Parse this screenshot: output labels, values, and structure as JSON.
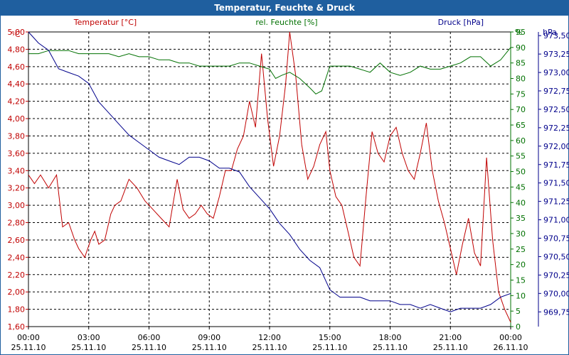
{
  "window": {
    "title": "Temperatur, Feuchte & Druck"
  },
  "colors": {
    "temperature": "#c00000",
    "humidity": "#007000",
    "pressure": "#00008b",
    "grid": "#000000",
    "title_bar": "#1f5f9f"
  },
  "chart_data": {
    "type": "line",
    "title": "Temperatur, Feuchte & Druck",
    "grid": true,
    "x_ticks": [
      {
        "time": "00:00",
        "date": "25.11.10"
      },
      {
        "time": "03:00",
        "date": "25.11.10"
      },
      {
        "time": "06:00",
        "date": "25.11.10"
      },
      {
        "time": "09:00",
        "date": "25.11.10"
      },
      {
        "time": "12:00",
        "date": "25.11.10"
      },
      {
        "time": "15:00",
        "date": "25.11.10"
      },
      {
        "time": "18:00",
        "date": "25.11.10"
      },
      {
        "time": "21:00",
        "date": "25.11.10"
      },
      {
        "time": "00:00",
        "date": "26.11.10"
      }
    ],
    "x_range_hours": [
      0,
      24
    ],
    "axes": {
      "temperature": {
        "label": "Temperatur [°C]",
        "unit": "°C",
        "ylim": [
          1.6,
          5.0
        ],
        "ticks": [
          "5,00",
          "4,80",
          "4,60",
          "4,40",
          "4,20",
          "4,00",
          "3,80",
          "3,60",
          "3,40",
          "3,20",
          "3,00",
          "2,80",
          "2,60",
          "2,40",
          "2,20",
          "2,00",
          "1,80",
          "1,60"
        ]
      },
      "humidity": {
        "label": "rel. Feuchte [%]",
        "unit": "%",
        "ylim": [
          0,
          95
        ],
        "ticks": [
          "95",
          "90",
          "85",
          "80",
          "75",
          "70",
          "65",
          "60",
          "55",
          "50",
          "45",
          "40",
          "35",
          "30",
          "25",
          "20",
          "15",
          "10",
          "5",
          "0"
        ]
      },
      "pressure": {
        "label": "Druck [hPa]",
        "unit": "hPa",
        "ylim": [
          969.75,
          973.5
        ],
        "ticks": [
          "973,50",
          "973,25",
          "973,00",
          "972,75",
          "972,50",
          "972,25",
          "972,00",
          "971,75",
          "971,50",
          "971,25",
          "971,00",
          "970,75",
          "970,50",
          "970,25",
          "970,00",
          "969,75"
        ]
      }
    },
    "series": [
      {
        "name": "Temperatur [°C]",
        "axis": "temperature",
        "x": [
          0,
          0.3,
          0.6,
          1,
          1.4,
          1.7,
          2,
          2.3,
          2.5,
          2.8,
          3.1,
          3.3,
          3.5,
          3.8,
          4.1,
          4.3,
          4.6,
          5,
          5.4,
          5.8,
          6.2,
          6.6,
          7,
          7.4,
          7.7,
          8,
          8.3,
          8.6,
          8.9,
          9.2,
          9.5,
          9.8,
          10.1,
          10.4,
          10.7,
          11,
          11.3,
          11.6,
          11.9,
          12.2,
          12.5,
          12.8,
          13,
          13.3,
          13.6,
          13.9,
          14.2,
          14.5,
          14.8,
          15,
          15.3,
          15.6,
          15.9,
          16.2,
          16.5,
          16.8,
          17.1,
          17.4,
          17.7,
          18,
          18.3,
          18.6,
          18.9,
          19.2,
          19.5,
          19.8,
          20.1,
          20.4,
          20.7,
          21,
          21.3,
          21.6,
          21.9,
          22.2,
          22.5,
          22.8,
          23.1,
          23.4,
          23.7,
          24
        ],
        "values": [
          3.35,
          3.25,
          3.35,
          3.2,
          3.35,
          2.75,
          2.8,
          2.6,
          2.5,
          2.4,
          2.6,
          2.7,
          2.55,
          2.6,
          2.9,
          3.0,
          3.05,
          3.3,
          3.2,
          3.05,
          2.95,
          2.85,
          2.75,
          3.3,
          2.95,
          2.85,
          2.9,
          3.0,
          2.9,
          2.85,
          3.1,
          3.4,
          3.4,
          3.65,
          3.8,
          4.2,
          3.9,
          4.75,
          4.0,
          3.45,
          3.8,
          4.4,
          5.0,
          4.5,
          3.7,
          3.3,
          3.45,
          3.7,
          3.85,
          3.4,
          3.1,
          3.0,
          2.7,
          2.4,
          2.3,
          3.1,
          3.85,
          3.6,
          3.5,
          3.8,
          3.9,
          3.6,
          3.4,
          3.3,
          3.6,
          3.95,
          3.4,
          3.05,
          2.8,
          2.5,
          2.2,
          2.55,
          2.85,
          2.45,
          2.3,
          3.55,
          2.6,
          2.0,
          1.8,
          1.65
        ]
      },
      {
        "name": "rel. Feuchte [%]",
        "axis": "humidity",
        "x": [
          0,
          0.5,
          1,
          1.5,
          2,
          2.5,
          3,
          3.5,
          4,
          4.5,
          5,
          5.5,
          6,
          6.5,
          7,
          7.5,
          8,
          8.5,
          9,
          9.5,
          10,
          10.5,
          11,
          11.5,
          12,
          12.3,
          12.6,
          13,
          13.5,
          14,
          14.3,
          14.6,
          15,
          15.5,
          16,
          16.5,
          17,
          17.5,
          18,
          18.5,
          19,
          19.5,
          20,
          20.5,
          21,
          21.5,
          22,
          22.5,
          23,
          23.5,
          24
        ],
        "values": [
          88,
          88,
          89,
          89,
          89,
          88,
          88,
          88,
          88,
          87,
          88,
          87,
          87,
          86,
          86,
          85,
          85,
          84,
          84,
          84,
          84,
          85,
          85,
          84,
          83,
          80,
          81,
          82,
          80,
          77,
          75,
          76,
          84,
          84,
          84,
          83,
          82,
          85,
          82,
          81,
          82,
          84,
          83,
          83,
          84,
          85,
          87,
          87,
          84,
          86,
          90
        ]
      },
      {
        "name": "Druck [hPa]",
        "axis": "pressure",
        "x": [
          0,
          0.5,
          1,
          1.5,
          2,
          2.5,
          3,
          3.5,
          4,
          4.5,
          5,
          5.5,
          6,
          6.5,
          7,
          7.5,
          8,
          8.5,
          9,
          9.5,
          10,
          10.5,
          11,
          11.5,
          12,
          12.5,
          13,
          13.5,
          14,
          14.5,
          15,
          15.5,
          16,
          16.5,
          17,
          17.5,
          18,
          18.5,
          19,
          19.5,
          20,
          20.5,
          21,
          21.5,
          22,
          22.5,
          23,
          23.5,
          24
        ],
        "values": [
          973.55,
          973.4,
          973.3,
          973.05,
          973.0,
          972.95,
          972.85,
          972.6,
          972.45,
          972.3,
          972.15,
          972.05,
          971.95,
          971.85,
          971.8,
          971.75,
          971.85,
          971.85,
          971.8,
          971.7,
          971.7,
          971.65,
          971.45,
          971.3,
          971.15,
          970.95,
          970.8,
          970.6,
          970.45,
          970.35,
          970.05,
          969.95,
          969.95,
          969.95,
          969.9,
          969.9,
          969.9,
          969.85,
          969.85,
          969.8,
          969.85,
          969.8,
          969.75,
          969.8,
          969.8,
          969.8,
          969.85,
          969.95,
          970.0
        ]
      }
    ]
  }
}
